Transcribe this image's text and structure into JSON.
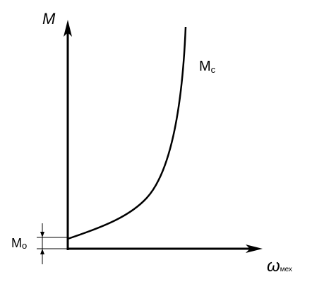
{
  "axes": {
    "y_label": "M",
    "x_label_symbol": "ω",
    "x_label_subscript": "мех"
  },
  "curve": {
    "label": "M",
    "label_subscript": "c"
  },
  "offset": {
    "label": "M",
    "label_subscript": "o"
  }
}
